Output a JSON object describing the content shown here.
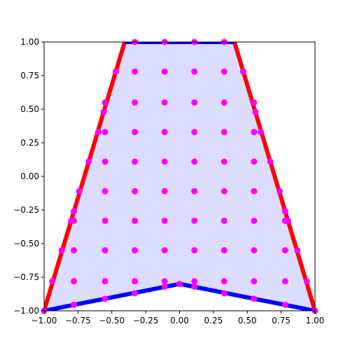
{
  "chart_data": {
    "type": "scatter",
    "title": "",
    "xlabel": "",
    "ylabel": "",
    "xlim": [
      -1,
      1
    ],
    "ylim": [
      -1,
      1
    ],
    "grid": false,
    "legend": "none",
    "x_ticks": [
      -1.0,
      -0.75,
      -0.5,
      -0.25,
      0.0,
      0.25,
      0.5,
      0.75,
      1.0
    ],
    "x_tick_labels": [
      "−1.00",
      "−0.75",
      "−0.50",
      "−0.25",
      "0.00",
      "0.25",
      "0.50",
      "0.75",
      "1.00"
    ],
    "y_ticks": [
      -1.0,
      -0.75,
      -0.5,
      -0.25,
      0.0,
      0.25,
      0.5,
      0.75,
      1.0
    ],
    "y_tick_labels": [
      "−1.00",
      "−0.75",
      "−0.50",
      "−0.25",
      "0.00",
      "0.25",
      "0.50",
      "0.75",
      "1.00"
    ],
    "region": {
      "fill_color": "#dcdcff",
      "polygon": [
        [
          -1.0,
          -1.0
        ],
        [
          -0.405,
          1.0
        ],
        [
          0.405,
          1.0
        ],
        [
          1.0,
          -1.0
        ],
        [
          0.0,
          -0.8
        ]
      ]
    },
    "lines": [
      {
        "color": "#ff0000",
        "points": [
          [
            -1.0,
            -1.0
          ],
          [
            -0.405,
            1.0
          ]
        ]
      },
      {
        "color": "#ff0000",
        "points": [
          [
            1.0,
            -1.0
          ],
          [
            0.405,
            1.0
          ]
        ]
      },
      {
        "color": "#0000ff",
        "points": [
          [
            -0.405,
            1.0
          ],
          [
            0.405,
            1.0
          ]
        ]
      },
      {
        "color": "#0000ff",
        "points": [
          [
            -1.0,
            -1.0
          ],
          [
            0.0,
            -0.8
          ],
          [
            1.0,
            -1.0
          ]
        ]
      }
    ],
    "marker_color": "#ff00ff",
    "points": [
      [
        -0.33,
        1.0
      ],
      [
        -0.11,
        1.0
      ],
      [
        0.11,
        1.0
      ],
      [
        0.33,
        1.0
      ],
      [
        -0.47,
        0.78
      ],
      [
        -0.33,
        0.78
      ],
      [
        -0.11,
        0.78
      ],
      [
        0.11,
        0.78
      ],
      [
        0.33,
        0.78
      ],
      [
        0.47,
        0.78
      ],
      [
        -0.55,
        0.55
      ],
      [
        -0.33,
        0.55
      ],
      [
        -0.11,
        0.55
      ],
      [
        0.11,
        0.55
      ],
      [
        0.33,
        0.55
      ],
      [
        0.55,
        0.55
      ],
      [
        -0.56,
        0.48
      ],
      [
        0.56,
        0.48
      ],
      [
        -0.6,
        0.33
      ],
      [
        -0.55,
        0.33
      ],
      [
        -0.33,
        0.33
      ],
      [
        -0.11,
        0.33
      ],
      [
        0.11,
        0.33
      ],
      [
        0.33,
        0.33
      ],
      [
        0.55,
        0.33
      ],
      [
        0.6,
        0.33
      ],
      [
        -0.67,
        0.11
      ],
      [
        -0.55,
        0.11
      ],
      [
        -0.33,
        0.11
      ],
      [
        -0.11,
        0.11
      ],
      [
        0.11,
        0.11
      ],
      [
        0.33,
        0.11
      ],
      [
        0.55,
        0.11
      ],
      [
        0.67,
        0.11
      ],
      [
        -0.74,
        -0.11
      ],
      [
        -0.55,
        -0.11
      ],
      [
        -0.33,
        -0.11
      ],
      [
        -0.11,
        -0.11
      ],
      [
        0.11,
        -0.11
      ],
      [
        0.33,
        -0.11
      ],
      [
        0.55,
        -0.11
      ],
      [
        0.74,
        -0.11
      ],
      [
        -0.78,
        -0.26
      ],
      [
        0.78,
        -0.26
      ],
      [
        -0.8,
        -0.33
      ],
      [
        -0.78,
        -0.33
      ],
      [
        -0.55,
        -0.33
      ],
      [
        -0.33,
        -0.33
      ],
      [
        -0.11,
        -0.33
      ],
      [
        0.11,
        -0.33
      ],
      [
        0.33,
        -0.33
      ],
      [
        0.55,
        -0.33
      ],
      [
        0.78,
        -0.33
      ],
      [
        0.8,
        -0.33
      ],
      [
        -0.87,
        -0.55
      ],
      [
        -0.78,
        -0.55
      ],
      [
        -0.55,
        -0.55
      ],
      [
        -0.33,
        -0.55
      ],
      [
        -0.11,
        -0.55
      ],
      [
        0.11,
        -0.55
      ],
      [
        0.33,
        -0.55
      ],
      [
        0.55,
        -0.55
      ],
      [
        0.78,
        -0.55
      ],
      [
        0.87,
        -0.55
      ],
      [
        -0.94,
        -0.78
      ],
      [
        -0.78,
        -0.78
      ],
      [
        -0.55,
        -0.78
      ],
      [
        -0.33,
        -0.78
      ],
      [
        -0.11,
        -0.78
      ],
      [
        0.11,
        -0.78
      ],
      [
        0.33,
        -0.78
      ],
      [
        0.55,
        -0.78
      ],
      [
        0.78,
        -0.78
      ],
      [
        0.94,
        -0.78
      ],
      [
        -0.11,
        -0.82
      ],
      [
        0.0,
        -0.8
      ],
      [
        0.11,
        -0.82
      ],
      [
        -0.33,
        -0.87
      ],
      [
        0.33,
        -0.87
      ],
      [
        -0.55,
        -0.91
      ],
      [
        0.55,
        -0.91
      ],
      [
        -0.78,
        -0.955
      ],
      [
        0.78,
        -0.955
      ],
      [
        -1.0,
        -1.0
      ],
      [
        1.0,
        -1.0
      ]
    ]
  }
}
